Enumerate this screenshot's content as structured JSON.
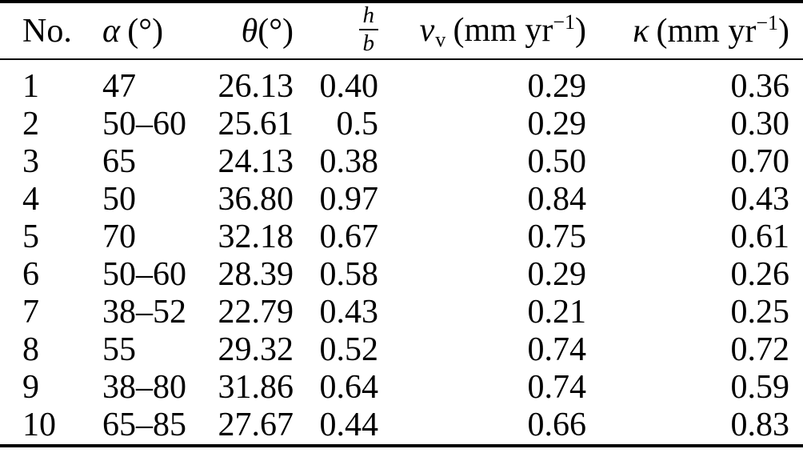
{
  "table": {
    "colors": {
      "text": "#000000",
      "rule": "#000000",
      "background": "#ffffff"
    },
    "header": {
      "no": "No.",
      "alpha": {
        "sym": "α",
        "unit": "(°)"
      },
      "theta": {
        "sym": "θ",
        "unit": "(°)"
      },
      "hb": {
        "num": "h",
        "den": "b"
      },
      "vv": {
        "sym": "v",
        "sub": "v",
        "unit_open": "(mm yr",
        "sup": "−1",
        "unit_close": ")"
      },
      "kappa": {
        "sym": "κ",
        "unit_open": "(mm yr",
        "sup": "−1",
        "unit_close": ")"
      }
    },
    "rows": [
      {
        "no": "1",
        "alpha": "47",
        "theta": "26.13",
        "hb": "0.40",
        "vv": "0.29",
        "kappa": "0.36"
      },
      {
        "no": "2",
        "alpha": "50–60",
        "theta": "25.61",
        "hb": "0.5",
        "vv": "0.29",
        "kappa": "0.30"
      },
      {
        "no": "3",
        "alpha": "65",
        "theta": "24.13",
        "hb": "0.38",
        "vv": "0.50",
        "kappa": "0.70"
      },
      {
        "no": "4",
        "alpha": "50",
        "theta": "36.80",
        "hb": "0.97",
        "vv": "0.84",
        "kappa": "0.43"
      },
      {
        "no": "5",
        "alpha": "70",
        "theta": "32.18",
        "hb": "0.67",
        "vv": "0.75",
        "kappa": "0.61"
      },
      {
        "no": "6",
        "alpha": "50–60",
        "theta": "28.39",
        "hb": "0.58",
        "vv": "0.29",
        "kappa": "0.26"
      },
      {
        "no": "7",
        "alpha": "38–52",
        "theta": "22.79",
        "hb": "0.43",
        "vv": "0.21",
        "kappa": "0.25"
      },
      {
        "no": "8",
        "alpha": "55",
        "theta": "29.32",
        "hb": "0.52",
        "vv": "0.74",
        "kappa": "0.72"
      },
      {
        "no": "9",
        "alpha": "38–80",
        "theta": "31.86",
        "hb": "0.64",
        "vv": "0.74",
        "kappa": "0.59"
      },
      {
        "no": "10",
        "alpha": "65–85",
        "theta": "27.67",
        "hb": "0.44",
        "vv": "0.66",
        "kappa": "0.83"
      }
    ]
  }
}
